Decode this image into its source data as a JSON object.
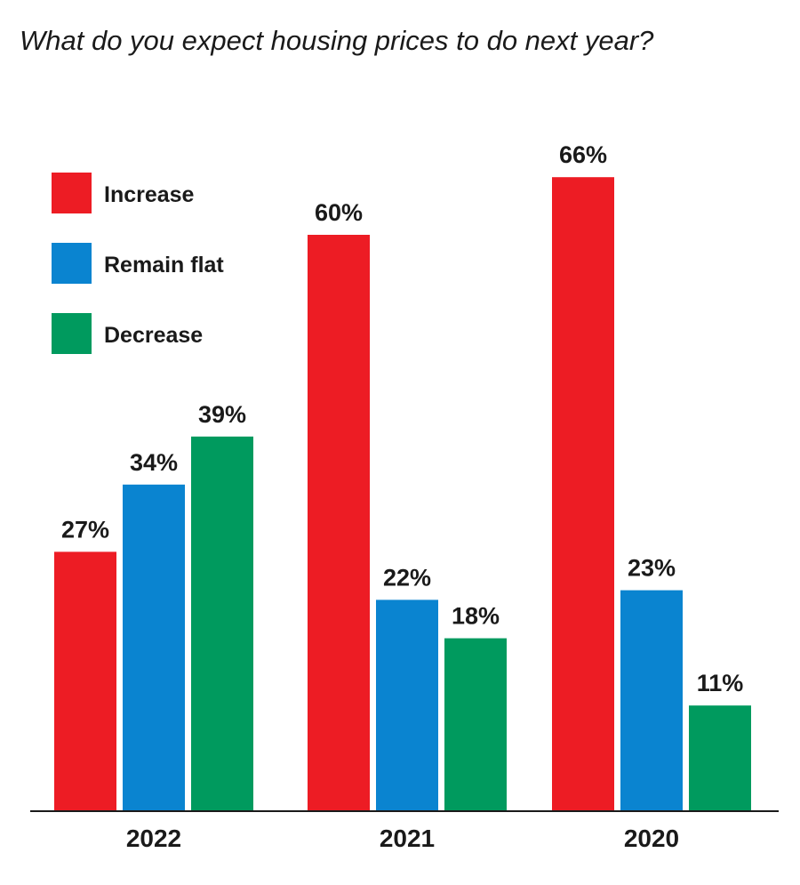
{
  "chart_data": {
    "type": "bar",
    "title": "What do you expect housing prices to do next year?",
    "categories": [
      "2022",
      "2021",
      "2020"
    ],
    "series": [
      {
        "name": "Increase",
        "color": "#ed1c24",
        "values": [
          27,
          60,
          66
        ]
      },
      {
        "name": "Remain flat",
        "color": "#0a84d0",
        "values": [
          34,
          22,
          23
        ]
      },
      {
        "name": "Decrease",
        "color": "#009a5e",
        "values": [
          39,
          18,
          11
        ]
      }
    ],
    "value_suffix": "%",
    "ylim": [
      0,
      100
    ],
    "grid": false,
    "legend_position": "top-left",
    "xlabel": "",
    "ylabel": ""
  }
}
